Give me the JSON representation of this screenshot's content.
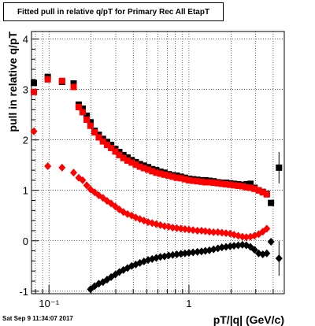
{
  "title": "Fitted pull in relative q/pT for Primary Rec All EtapT",
  "timestamp": "Sat Sep  9 11:34:07 2017",
  "chart_data": {
    "type": "scatter",
    "title": "Fitted pull in relative q/pT for Primary Rec All EtapT",
    "xlabel": "pT/|q| (GeV/c)",
    "ylabel": "pull in relative q/pT",
    "xscale": "log",
    "xlim": [
      0.075,
      4.8
    ],
    "ylim": [
      -1.05,
      4.15
    ],
    "x_tick_labels": [
      "10⁻¹",
      "1"
    ],
    "y_tick_labels": [
      "-1",
      "0",
      "1",
      "2",
      "3",
      "4"
    ],
    "grid": true,
    "series": [
      {
        "marker": "square",
        "color": "#000000",
        "points": [
          [
            0.078,
            3.13
          ],
          [
            0.098,
            3.25
          ],
          [
            0.124,
            3.15
          ],
          [
            0.15,
            3.12
          ],
          [
            0.163,
            2.7
          ],
          [
            0.174,
            2.62
          ],
          [
            0.186,
            2.48
          ],
          [
            0.198,
            2.35
          ],
          [
            0.212,
            2.18
          ],
          [
            0.227,
            2.1
          ],
          [
            0.243,
            2.02
          ],
          [
            0.26,
            1.96
          ],
          [
            0.278,
            1.9
          ],
          [
            0.298,
            1.82
          ],
          [
            0.318,
            1.76
          ],
          [
            0.34,
            1.7
          ],
          [
            0.364,
            1.65
          ],
          [
            0.39,
            1.6
          ],
          [
            0.417,
            1.56
          ],
          [
            0.446,
            1.52
          ],
          [
            0.477,
            1.49
          ],
          [
            0.511,
            1.46
          ],
          [
            0.546,
            1.42
          ],
          [
            0.584,
            1.4
          ],
          [
            0.625,
            1.37
          ],
          [
            0.669,
            1.35
          ],
          [
            0.716,
            1.32
          ],
          [
            0.766,
            1.3
          ],
          [
            0.819,
            1.29
          ],
          [
            0.876,
            1.27
          ],
          [
            0.937,
            1.25
          ],
          [
            1.0,
            1.23
          ],
          [
            1.07,
            1.22
          ],
          [
            1.15,
            1.21
          ],
          [
            1.23,
            1.2
          ],
          [
            1.31,
            1.2
          ],
          [
            1.4,
            1.19
          ],
          [
            1.5,
            1.18
          ],
          [
            1.61,
            1.16
          ],
          [
            1.72,
            1.15
          ],
          [
            1.84,
            1.15
          ],
          [
            1.97,
            1.14
          ],
          [
            2.1,
            1.13
          ],
          [
            2.25,
            1.12
          ],
          [
            2.41,
            1.11
          ],
          [
            2.57,
            1.12
          ],
          [
            2.75,
            1.13
          ],
          [
            2.94,
            1.05
          ],
          [
            3.15,
            1.0
          ],
          [
            3.37,
            0.97
          ],
          [
            3.6,
            0.93
          ],
          [
            3.86,
            0.75
          ],
          [
            4.4,
            1.45
          ]
        ]
      },
      {
        "marker": "square",
        "color": "#ff0000",
        "points": [
          [
            0.078,
            2.95
          ],
          [
            0.098,
            3.2
          ],
          [
            0.124,
            3.17
          ],
          [
            0.15,
            3.05
          ],
          [
            0.163,
            2.65
          ],
          [
            0.174,
            2.55
          ],
          [
            0.186,
            2.4
          ],
          [
            0.198,
            2.28
          ],
          [
            0.212,
            2.15
          ],
          [
            0.227,
            2.05
          ],
          [
            0.243,
            1.97
          ],
          [
            0.26,
            1.9
          ],
          [
            0.278,
            1.84
          ],
          [
            0.298,
            1.77
          ],
          [
            0.318,
            1.7
          ],
          [
            0.34,
            1.64
          ],
          [
            0.364,
            1.59
          ],
          [
            0.39,
            1.55
          ],
          [
            0.417,
            1.51
          ],
          [
            0.446,
            1.47
          ],
          [
            0.477,
            1.44
          ],
          [
            0.511,
            1.41
          ],
          [
            0.546,
            1.38
          ],
          [
            0.584,
            1.35
          ],
          [
            0.625,
            1.33
          ],
          [
            0.669,
            1.31
          ],
          [
            0.716,
            1.29
          ],
          [
            0.766,
            1.27
          ],
          [
            0.819,
            1.25
          ],
          [
            0.876,
            1.24
          ],
          [
            0.937,
            1.22
          ],
          [
            1.0,
            1.2
          ],
          [
            1.07,
            1.19
          ],
          [
            1.15,
            1.18
          ],
          [
            1.23,
            1.17
          ],
          [
            1.31,
            1.16
          ],
          [
            1.4,
            1.16
          ],
          [
            1.5,
            1.15
          ],
          [
            1.61,
            1.14
          ],
          [
            1.72,
            1.13
          ],
          [
            1.84,
            1.12
          ],
          [
            1.97,
            1.11
          ],
          [
            2.1,
            1.1
          ],
          [
            2.25,
            1.09
          ],
          [
            2.41,
            1.08
          ],
          [
            2.57,
            1.06
          ],
          [
            2.75,
            1.05
          ],
          [
            2.94,
            1.03
          ],
          [
            3.15,
            1.0
          ],
          [
            3.37,
            0.96
          ],
          [
            3.6,
            0.92
          ]
        ]
      },
      {
        "marker": "diamond",
        "color": "#ff0000",
        "points": [
          [
            0.078,
            2.17
          ],
          [
            0.098,
            1.48
          ],
          [
            0.124,
            1.45
          ],
          [
            0.15,
            1.35
          ],
          [
            0.163,
            1.25
          ],
          [
            0.174,
            1.2
          ],
          [
            0.186,
            1.1
          ],
          [
            0.198,
            1.02
          ],
          [
            0.212,
            0.96
          ],
          [
            0.227,
            0.9
          ],
          [
            0.243,
            0.85
          ],
          [
            0.26,
            0.79
          ],
          [
            0.278,
            0.74
          ],
          [
            0.298,
            0.68
          ],
          [
            0.318,
            0.62
          ],
          [
            0.34,
            0.57
          ],
          [
            0.364,
            0.53
          ],
          [
            0.39,
            0.5
          ],
          [
            0.417,
            0.46
          ],
          [
            0.446,
            0.43
          ],
          [
            0.477,
            0.4
          ],
          [
            0.511,
            0.37
          ],
          [
            0.546,
            0.35
          ],
          [
            0.584,
            0.33
          ],
          [
            0.625,
            0.31
          ],
          [
            0.669,
            0.29
          ],
          [
            0.716,
            0.28
          ],
          [
            0.766,
            0.26
          ],
          [
            0.819,
            0.25
          ],
          [
            0.876,
            0.24
          ],
          [
            0.937,
            0.23
          ],
          [
            1.0,
            0.22
          ],
          [
            1.07,
            0.21
          ],
          [
            1.15,
            0.2
          ],
          [
            1.23,
            0.2
          ],
          [
            1.31,
            0.19
          ],
          [
            1.4,
            0.18
          ],
          [
            1.5,
            0.17
          ],
          [
            1.61,
            0.17
          ],
          [
            1.72,
            0.16
          ],
          [
            1.84,
            0.15
          ],
          [
            1.97,
            0.14
          ],
          [
            2.1,
            0.12
          ],
          [
            2.25,
            0.1
          ],
          [
            2.41,
            0.08
          ],
          [
            2.57,
            0.07
          ],
          [
            2.75,
            0.08
          ],
          [
            2.94,
            0.1
          ],
          [
            3.15,
            0.13
          ],
          [
            3.37,
            0.18
          ],
          [
            3.6,
            0.24
          ]
        ]
      },
      {
        "marker": "diamond",
        "color": "#000000",
        "points": [
          [
            0.198,
            -0.96
          ],
          [
            0.212,
            -0.9
          ],
          [
            0.227,
            -0.85
          ],
          [
            0.243,
            -0.82
          ],
          [
            0.26,
            -0.77
          ],
          [
            0.278,
            -0.72
          ],
          [
            0.298,
            -0.67
          ],
          [
            0.318,
            -0.62
          ],
          [
            0.34,
            -0.58
          ],
          [
            0.364,
            -0.54
          ],
          [
            0.39,
            -0.5
          ],
          [
            0.417,
            -0.47
          ],
          [
            0.446,
            -0.44
          ],
          [
            0.477,
            -0.41
          ],
          [
            0.511,
            -0.38
          ],
          [
            0.546,
            -0.36
          ],
          [
            0.584,
            -0.34
          ],
          [
            0.625,
            -0.32
          ],
          [
            0.669,
            -0.31
          ],
          [
            0.716,
            -0.29
          ],
          [
            0.766,
            -0.28
          ],
          [
            0.819,
            -0.27
          ],
          [
            0.876,
            -0.26
          ],
          [
            0.937,
            -0.25
          ],
          [
            1.0,
            -0.24
          ],
          [
            1.07,
            -0.23
          ],
          [
            1.15,
            -0.22
          ],
          [
            1.23,
            -0.21
          ],
          [
            1.31,
            -0.2
          ],
          [
            1.4,
            -0.19
          ],
          [
            1.5,
            -0.17
          ],
          [
            1.61,
            -0.15
          ],
          [
            1.72,
            -0.13
          ],
          [
            1.84,
            -0.12
          ],
          [
            1.97,
            -0.11
          ],
          [
            2.1,
            -0.1
          ],
          [
            2.25,
            -0.09
          ],
          [
            2.41,
            -0.08
          ],
          [
            2.57,
            -0.09
          ],
          [
            2.75,
            -0.12
          ],
          [
            2.94,
            -0.18
          ],
          [
            3.15,
            -0.25
          ],
          [
            3.37,
            -0.27
          ],
          [
            3.6,
            -0.25
          ],
          [
            3.86,
            -0.02
          ],
          [
            4.4,
            -0.35
          ]
        ]
      }
    ]
  }
}
